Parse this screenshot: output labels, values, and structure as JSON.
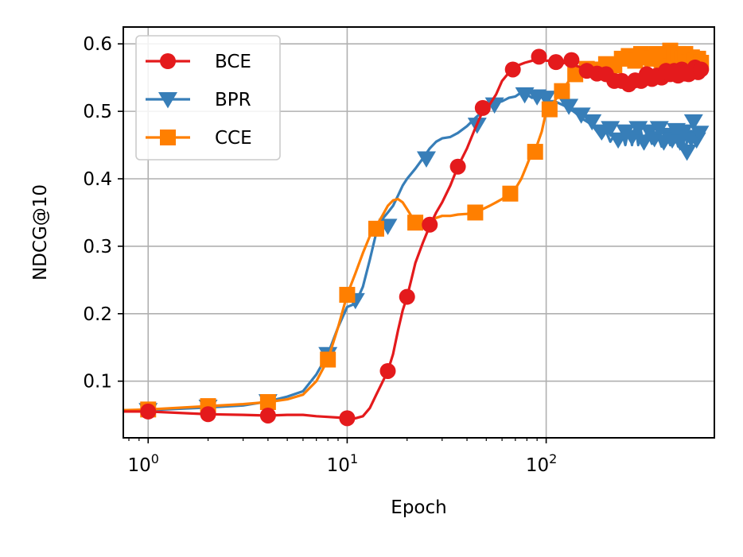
{
  "chart_data": {
    "type": "line",
    "xlabel": "Epoch",
    "ylabel": "NDCG@10",
    "xscale": "log",
    "xlim": [
      0.75,
      700
    ],
    "ylim": [
      0.016,
      0.625
    ],
    "grid": true,
    "legend_position": "top-left",
    "xticks": [
      {
        "base": "10",
        "exp": "0",
        "value": 1
      },
      {
        "base": "10",
        "exp": "1",
        "value": 10
      },
      {
        "base": "10",
        "exp": "2",
        "value": 100
      }
    ],
    "yticks": [
      "0.1",
      "0.2",
      "0.3",
      "0.4",
      "0.5",
      "0.6"
    ],
    "series": [
      {
        "name": "BCE",
        "color": "#e41a1c",
        "marker": "circle",
        "line": [
          [
            0.75,
            0.055
          ],
          [
            1,
            0.055
          ],
          [
            2,
            0.051
          ],
          [
            3,
            0.05
          ],
          [
            4,
            0.049
          ],
          [
            5,
            0.05
          ],
          [
            6,
            0.05
          ],
          [
            7,
            0.048
          ],
          [
            8,
            0.047
          ],
          [
            9,
            0.046
          ],
          [
            10,
            0.045
          ],
          [
            11,
            0.045
          ],
          [
            12,
            0.048
          ],
          [
            13,
            0.06
          ],
          [
            14,
            0.08
          ],
          [
            15,
            0.098
          ],
          [
            16,
            0.115
          ],
          [
            17,
            0.14
          ],
          [
            18,
            0.175
          ],
          [
            19,
            0.205
          ],
          [
            20,
            0.225
          ],
          [
            21,
            0.25
          ],
          [
            22,
            0.275
          ],
          [
            24,
            0.305
          ],
          [
            26,
            0.33
          ],
          [
            28,
            0.35
          ],
          [
            30,
            0.365
          ],
          [
            33,
            0.39
          ],
          [
            36,
            0.418
          ],
          [
            40,
            0.445
          ],
          [
            44,
            0.475
          ],
          [
            48,
            0.5
          ],
          [
            52,
            0.51
          ],
          [
            56,
            0.525
          ],
          [
            60,
            0.545
          ],
          [
            64,
            0.555
          ],
          [
            68,
            0.562
          ],
          [
            72,
            0.568
          ],
          [
            78,
            0.572
          ],
          [
            85,
            0.575
          ],
          [
            92,
            0.58
          ],
          [
            100,
            0.575
          ],
          [
            110,
            0.575
          ],
          [
            120,
            0.57
          ],
          [
            130,
            0.576
          ],
          [
            140,
            0.568
          ],
          [
            160,
            0.562
          ],
          [
            180,
            0.558
          ],
          [
            200,
            0.555
          ],
          [
            220,
            0.55
          ],
          [
            240,
            0.545
          ],
          [
            260,
            0.54
          ],
          [
            280,
            0.548
          ],
          [
            300,
            0.545
          ],
          [
            330,
            0.556
          ],
          [
            360,
            0.548
          ],
          [
            400,
            0.56
          ],
          [
            440,
            0.552
          ],
          [
            480,
            0.562
          ],
          [
            520,
            0.555
          ],
          [
            560,
            0.565
          ],
          [
            600,
            0.56
          ]
        ],
        "markers": [
          [
            1,
            0.055
          ],
          [
            2,
            0.051
          ],
          [
            4,
            0.049
          ],
          [
            10,
            0.045
          ],
          [
            16,
            0.115
          ],
          [
            20,
            0.225
          ],
          [
            26,
            0.332
          ],
          [
            36,
            0.418
          ],
          [
            48,
            0.505
          ],
          [
            68,
            0.562
          ],
          [
            92,
            0.581
          ],
          [
            112,
            0.573
          ],
          [
            134,
            0.576
          ],
          [
            160,
            0.56
          ],
          [
            180,
            0.556
          ],
          [
            200,
            0.555
          ],
          [
            220,
            0.545
          ],
          [
            240,
            0.545
          ],
          [
            260,
            0.54
          ],
          [
            280,
            0.546
          ],
          [
            300,
            0.545
          ],
          [
            320,
            0.555
          ],
          [
            340,
            0.548
          ],
          [
            360,
            0.553
          ],
          [
            380,
            0.55
          ],
          [
            400,
            0.56
          ],
          [
            420,
            0.555
          ],
          [
            440,
            0.56
          ],
          [
            460,
            0.553
          ],
          [
            480,
            0.562
          ],
          [
            500,
            0.556
          ],
          [
            520,
            0.555
          ],
          [
            540,
            0.56
          ],
          [
            560,
            0.565
          ],
          [
            580,
            0.558
          ],
          [
            600,
            0.562
          ]
        ]
      },
      {
        "name": "BPR",
        "color": "#377eb8",
        "marker": "triangle-down",
        "line": [
          [
            0.75,
            0.057
          ],
          [
            1,
            0.057
          ],
          [
            2,
            0.061
          ],
          [
            3,
            0.064
          ],
          [
            4,
            0.07
          ],
          [
            5,
            0.077
          ],
          [
            6,
            0.085
          ],
          [
            7,
            0.11
          ],
          [
            8,
            0.14
          ],
          [
            9,
            0.18
          ],
          [
            10,
            0.21
          ],
          [
            11,
            0.215
          ],
          [
            12,
            0.24
          ],
          [
            13,
            0.28
          ],
          [
            14,
            0.32
          ],
          [
            15,
            0.34
          ],
          [
            16,
            0.35
          ],
          [
            17,
            0.36
          ],
          [
            18,
            0.375
          ],
          [
            19,
            0.39
          ],
          [
            20,
            0.4
          ],
          [
            22,
            0.415
          ],
          [
            24,
            0.43
          ],
          [
            26,
            0.445
          ],
          [
            28,
            0.455
          ],
          [
            30,
            0.46
          ],
          [
            33,
            0.462
          ],
          [
            36,
            0.468
          ],
          [
            40,
            0.478
          ],
          [
            44,
            0.49
          ],
          [
            48,
            0.5
          ],
          [
            52,
            0.508
          ],
          [
            56,
            0.512
          ],
          [
            60,
            0.515
          ],
          [
            65,
            0.52
          ],
          [
            70,
            0.522
          ],
          [
            75,
            0.528
          ],
          [
            80,
            0.525
          ],
          [
            85,
            0.52
          ],
          [
            90,
            0.522
          ],
          [
            95,
            0.525
          ],
          [
            100,
            0.515
          ],
          [
            110,
            0.515
          ],
          [
            120,
            0.51
          ],
          [
            130,
            0.505
          ],
          [
            140,
            0.498
          ],
          [
            150,
            0.49
          ],
          [
            160,
            0.485
          ],
          [
            170,
            0.48
          ],
          [
            180,
            0.47
          ],
          [
            190,
            0.46
          ],
          [
            200,
            0.47
          ],
          [
            210,
            0.455
          ],
          [
            220,
            0.465
          ],
          [
            230,
            0.45
          ],
          [
            240,
            0.47
          ],
          [
            250,
            0.45
          ],
          [
            260,
            0.475
          ],
          [
            270,
            0.45
          ],
          [
            280,
            0.48
          ],
          [
            290,
            0.45
          ],
          [
            300,
            0.47
          ],
          [
            310,
            0.445
          ],
          [
            320,
            0.472
          ],
          [
            340,
            0.452
          ],
          [
            360,
            0.468
          ],
          [
            380,
            0.448
          ],
          [
            400,
            0.47
          ],
          [
            420,
            0.45
          ],
          [
            440,
            0.472
          ],
          [
            460,
            0.448
          ],
          [
            480,
            0.475
          ],
          [
            500,
            0.44
          ],
          [
            520,
            0.47
          ],
          [
            540,
            0.452
          ],
          [
            560,
            0.475
          ],
          [
            580,
            0.455
          ],
          [
            600,
            0.47
          ]
        ],
        "markers": [
          [
            1,
            0.057
          ],
          [
            2,
            0.062
          ],
          [
            4,
            0.07
          ],
          [
            8,
            0.14
          ],
          [
            11,
            0.22
          ],
          [
            16,
            0.33
          ],
          [
            25,
            0.43
          ],
          [
            45,
            0.48
          ],
          [
            55,
            0.51
          ],
          [
            78,
            0.525
          ],
          [
            90,
            0.522
          ],
          [
            100,
            0.52
          ],
          [
            130,
            0.508
          ],
          [
            150,
            0.495
          ],
          [
            170,
            0.485
          ],
          [
            190,
            0.47
          ],
          [
            210,
            0.475
          ],
          [
            230,
            0.458
          ],
          [
            250,
            0.47
          ],
          [
            270,
            0.462
          ],
          [
            290,
            0.475
          ],
          [
            310,
            0.455
          ],
          [
            330,
            0.47
          ],
          [
            350,
            0.46
          ],
          [
            370,
            0.475
          ],
          [
            390,
            0.455
          ],
          [
            410,
            0.465
          ],
          [
            430,
            0.458
          ],
          [
            450,
            0.472
          ],
          [
            470,
            0.455
          ],
          [
            490,
            0.47
          ],
          [
            510,
            0.44
          ],
          [
            530,
            0.462
          ],
          [
            550,
            0.485
          ],
          [
            570,
            0.458
          ],
          [
            590,
            0.468
          ]
        ]
      },
      {
        "name": "CCE",
        "color": "#ff7f00",
        "marker": "square",
        "line": [
          [
            0.75,
            0.057
          ],
          [
            1,
            0.058
          ],
          [
            2,
            0.063
          ],
          [
            3,
            0.066
          ],
          [
            4,
            0.069
          ],
          [
            5,
            0.073
          ],
          [
            6,
            0.08
          ],
          [
            7,
            0.1
          ],
          [
            8,
            0.132
          ],
          [
            9,
            0.18
          ],
          [
            10,
            0.228
          ],
          [
            11,
            0.26
          ],
          [
            12,
            0.29
          ],
          [
            13,
            0.315
          ],
          [
            14,
            0.33
          ],
          [
            15,
            0.345
          ],
          [
            16,
            0.36
          ],
          [
            17,
            0.368
          ],
          [
            18,
            0.37
          ],
          [
            19,
            0.365
          ],
          [
            20,
            0.355
          ],
          [
            21,
            0.345
          ],
          [
            22,
            0.338
          ],
          [
            24,
            0.336
          ],
          [
            26,
            0.338
          ],
          [
            28,
            0.342
          ],
          [
            30,
            0.345
          ],
          [
            33,
            0.345
          ],
          [
            36,
            0.347
          ],
          [
            40,
            0.348
          ],
          [
            44,
            0.35
          ],
          [
            48,
            0.355
          ],
          [
            52,
            0.36
          ],
          [
            56,
            0.365
          ],
          [
            60,
            0.37
          ],
          [
            65,
            0.378
          ],
          [
            70,
            0.385
          ],
          [
            75,
            0.4
          ],
          [
            80,
            0.42
          ],
          [
            85,
            0.44
          ],
          [
            90,
            0.45
          ],
          [
            95,
            0.47
          ],
          [
            100,
            0.5
          ],
          [
            110,
            0.515
          ],
          [
            120,
            0.53
          ],
          [
            130,
            0.545
          ],
          [
            140,
            0.555
          ],
          [
            150,
            0.56
          ],
          [
            160,
            0.565
          ],
          [
            180,
            0.57
          ],
          [
            200,
            0.575
          ],
          [
            220,
            0.572
          ],
          [
            240,
            0.578
          ],
          [
            260,
            0.58
          ],
          [
            280,
            0.575
          ],
          [
            300,
            0.585
          ],
          [
            320,
            0.578
          ],
          [
            340,
            0.58
          ],
          [
            360,
            0.582
          ],
          [
            380,
            0.575
          ],
          [
            400,
            0.585
          ],
          [
            420,
            0.578
          ],
          [
            440,
            0.585
          ],
          [
            460,
            0.575
          ],
          [
            480,
            0.58
          ],
          [
            500,
            0.575
          ],
          [
            520,
            0.578
          ],
          [
            540,
            0.57
          ],
          [
            560,
            0.575
          ],
          [
            580,
            0.572
          ],
          [
            600,
            0.57
          ]
        ],
        "markers": [
          [
            1,
            0.058
          ],
          [
            2,
            0.063
          ],
          [
            4,
            0.069
          ],
          [
            8,
            0.132
          ],
          [
            10,
            0.228
          ],
          [
            14,
            0.326
          ],
          [
            22,
            0.335
          ],
          [
            44,
            0.35
          ],
          [
            66,
            0.378
          ],
          [
            88,
            0.44
          ],
          [
            104,
            0.503
          ],
          [
            120,
            0.53
          ],
          [
            140,
            0.555
          ],
          [
            160,
            0.563
          ],
          [
            180,
            0.562
          ],
          [
            200,
            0.57
          ],
          [
            220,
            0.568
          ],
          [
            240,
            0.578
          ],
          [
            260,
            0.582
          ],
          [
            280,
            0.575
          ],
          [
            300,
            0.585
          ],
          [
            320,
            0.58
          ],
          [
            340,
            0.578
          ],
          [
            360,
            0.585
          ],
          [
            380,
            0.576
          ],
          [
            400,
            0.582
          ],
          [
            420,
            0.59
          ],
          [
            440,
            0.58
          ],
          [
            460,
            0.585
          ],
          [
            480,
            0.578
          ],
          [
            500,
            0.585
          ],
          [
            520,
            0.572
          ],
          [
            540,
            0.58
          ],
          [
            560,
            0.575
          ],
          [
            580,
            0.578
          ],
          [
            600,
            0.572
          ]
        ]
      }
    ]
  }
}
